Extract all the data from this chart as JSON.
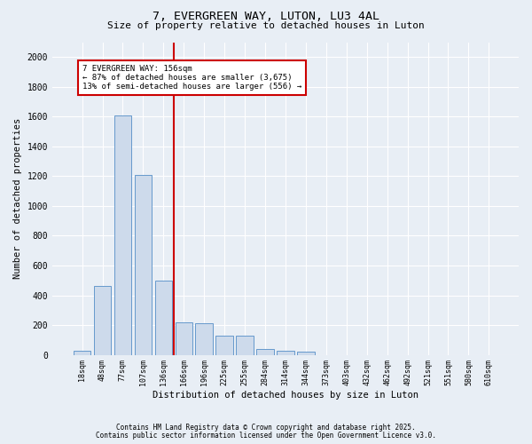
{
  "title_line1": "7, EVERGREEN WAY, LUTON, LU3 4AL",
  "title_line2": "Size of property relative to detached houses in Luton",
  "xlabel": "Distribution of detached houses by size in Luton",
  "ylabel": "Number of detached properties",
  "bar_labels": [
    "18sqm",
    "48sqm",
    "77sqm",
    "107sqm",
    "136sqm",
    "166sqm",
    "196sqm",
    "225sqm",
    "255sqm",
    "284sqm",
    "314sqm",
    "344sqm",
    "373sqm",
    "403sqm",
    "432sqm",
    "462sqm",
    "492sqm",
    "521sqm",
    "551sqm",
    "580sqm",
    "610sqm"
  ],
  "bar_values": [
    30,
    460,
    1610,
    1210,
    500,
    220,
    215,
    130,
    130,
    40,
    25,
    20,
    0,
    0,
    0,
    0,
    0,
    0,
    0,
    0,
    0
  ],
  "bar_color": "#cddaeb",
  "bar_edge_color": "#6699cc",
  "vline_color": "#cc0000",
  "annotation_text": "7 EVERGREEN WAY: 156sqm\n← 87% of detached houses are smaller (3,675)\n13% of semi-detached houses are larger (556) →",
  "annotation_box_color": "#ffffff",
  "annotation_box_edge": "#cc0000",
  "ylim": [
    0,
    2100
  ],
  "yticks": [
    0,
    200,
    400,
    600,
    800,
    1000,
    1200,
    1400,
    1600,
    1800,
    2000
  ],
  "footer_line1": "Contains HM Land Registry data © Crown copyright and database right 2025.",
  "footer_line2": "Contains public sector information licensed under the Open Government Licence v3.0.",
  "bg_color": "#e8eef5",
  "plot_bg_color": "#e8eef5",
  "grid_color": "#ffffff",
  "font_family": "DejaVu Sans Mono"
}
